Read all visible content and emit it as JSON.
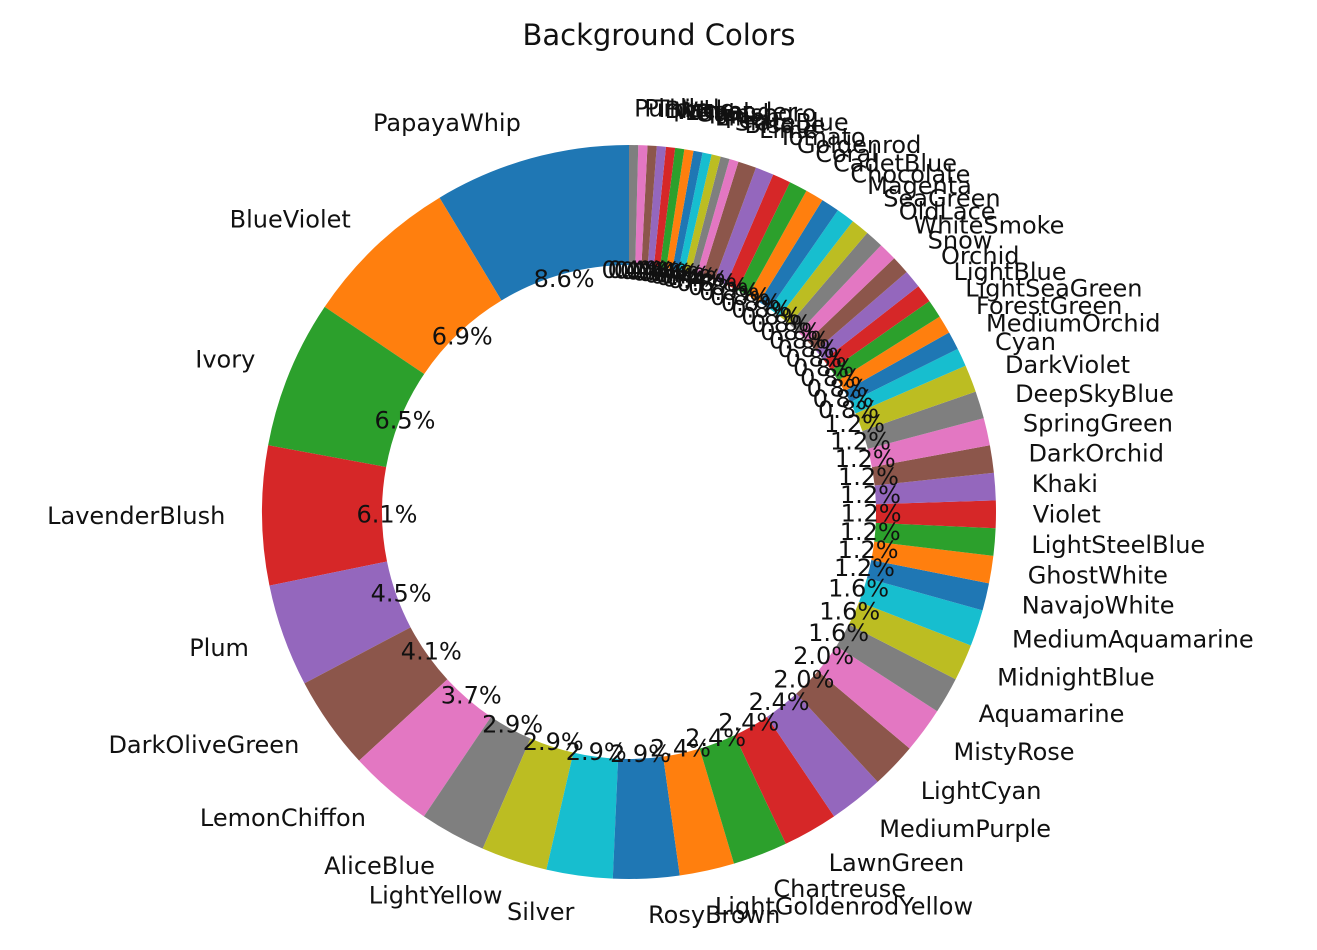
{
  "chart_data": {
    "type": "pie",
    "title": "Background Colors",
    "donut": true,
    "start_angle_deg": 90,
    "direction": "counterclockwise",
    "value_format": "percent_one_decimal",
    "categories": [
      "PapayaWhip",
      "BlueViolet",
      "Ivory",
      "LavenderBlush",
      "Plum",
      "DarkOliveGreen",
      "LemonChiffon",
      "AliceBlue",
      "LightYellow",
      "Silver",
      "RosyBrown",
      "LightGoldenrodYellow",
      "Chartreuse",
      "LawnGreen",
      "MediumPurple",
      "LightCyan",
      "MistyRose",
      "Aquamarine",
      "MidnightBlue",
      "MediumAquamarine",
      "NavajoWhite",
      "GhostWhite",
      "LightSteelBlue",
      "Violet",
      "Khaki",
      "DarkOrchid",
      "SpringGreen",
      "DeepSkyBlue",
      "DarkViolet",
      "Cyan",
      "MediumOrchid",
      "ForestGreen",
      "LightSeaGreen",
      "LightBlue",
      "Orchid",
      "Snow",
      "WhiteSmoke",
      "OldLace",
      "SeaGreen",
      "Magenta",
      "Chocolate",
      "CadetBlue",
      "Coral",
      "Goldenrod",
      "Tomato",
      "Lime",
      "Bisque",
      "SlateBlue",
      "Peru",
      "Linen",
      "Tan",
      "Gainsboro",
      "Lavender",
      "Wheat",
      "Black",
      "Thistle",
      "Pink",
      "Purple"
    ],
    "values": [
      8.6,
      6.9,
      6.5,
      6.1,
      4.5,
      4.1,
      3.7,
      2.9,
      2.9,
      2.9,
      2.9,
      2.4,
      2.4,
      2.4,
      2.4,
      2.0,
      2.0,
      1.6,
      1.6,
      1.6,
      1.2,
      1.2,
      1.2,
      1.2,
      1.2,
      1.2,
      1.2,
      1.2,
      1.2,
      0.8,
      0.8,
      0.8,
      0.8,
      0.8,
      0.8,
      0.8,
      0.8,
      0.8,
      0.8,
      0.8,
      0.8,
      0.8,
      0.8,
      0.8,
      0.8,
      0.8,
      0.4,
      0.4,
      0.4,
      0.4,
      0.4,
      0.4,
      0.4,
      0.4,
      0.4,
      0.4,
      0.4,
      0.4
    ],
    "colors": [
      "#1f77b4",
      "#ff7f0e",
      "#2ca02c",
      "#d62728",
      "#9467bd",
      "#8c564b",
      "#e377c2",
      "#7f7f7f",
      "#bcbd22",
      "#17becf"
    ],
    "legend": "none"
  }
}
